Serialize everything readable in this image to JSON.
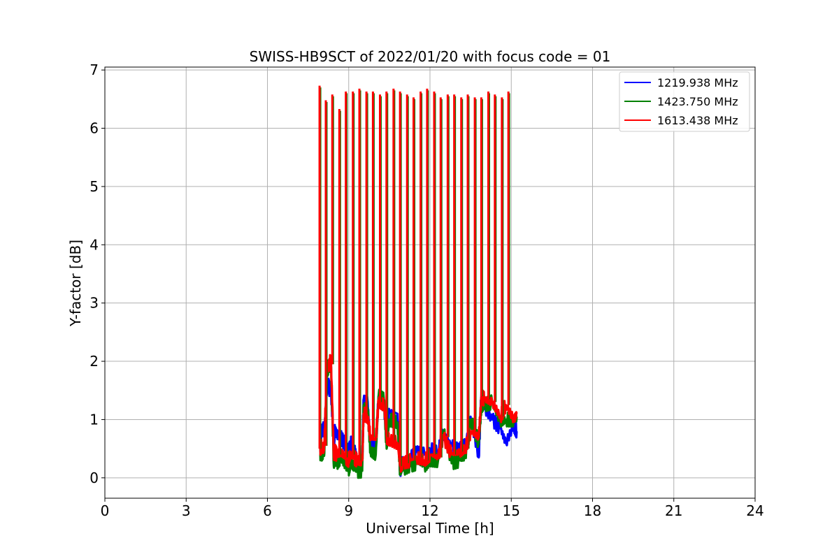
{
  "chart_data": {
    "type": "line",
    "title": "SWISS-HB9SCT of 2022/01/20 with focus code = 01",
    "xlabel": "Universal Time [h]",
    "ylabel": "Y-factor [dB]",
    "xlim": [
      0,
      24
    ],
    "ylim": [
      -0.35,
      7.05
    ],
    "xticks": [
      0,
      3,
      6,
      9,
      12,
      15,
      18,
      21,
      24
    ],
    "yticks": [
      0,
      1,
      2,
      3,
      4,
      5,
      6,
      7
    ],
    "xtick_labels": [
      "0",
      "3",
      "6",
      "9",
      "12",
      "15",
      "18",
      "21",
      "24"
    ],
    "ytick_labels": [
      "0",
      "1",
      "2",
      "3",
      "4",
      "5",
      "6",
      "7"
    ],
    "grid": true,
    "legend_position": "top-right",
    "series": [
      {
        "name": "1219.938 MHz",
        "color": "#0000ff",
        "x": [
          7.95,
          8.0,
          8.05,
          8.1,
          8.2,
          8.25,
          8.3,
          8.35,
          8.45,
          8.5,
          8.55,
          8.7,
          8.9,
          9.0,
          9.05,
          9.2,
          9.3,
          9.5,
          9.55,
          9.7,
          9.8,
          10.0,
          10.1,
          10.3,
          10.4,
          10.5,
          10.8,
          10.9,
          11.0,
          11.3,
          11.5,
          11.8,
          12.0,
          12.3,
          12.5,
          12.8,
          13.1,
          13.3,
          13.5,
          13.8,
          13.9,
          14.0,
          14.3,
          14.6,
          14.8,
          15.1,
          15.2
        ],
        "y": [
          0.45,
          0.8,
          0.85,
          0.82,
          1.55,
          1.6,
          1.5,
          1.45,
          0.6,
          0.85,
          0.75,
          0.7,
          0.55,
          0.5,
          0.6,
          0.55,
          0.3,
          0.3,
          1.35,
          1.3,
          0.6,
          0.5,
          1.4,
          1.3,
          0.6,
          1.15,
          1.1,
          0.1,
          0.3,
          0.35,
          0.45,
          0.4,
          0.5,
          0.45,
          0.8,
          0.55,
          0.5,
          0.55,
          1.05,
          0.35,
          1.5,
          1.2,
          1.0,
          0.85,
          0.6,
          0.9,
          0.8
        ]
      },
      {
        "name": "1423.750 MHz",
        "color": "#008000",
        "x": [
          7.95,
          8.0,
          8.05,
          8.1,
          8.2,
          8.25,
          8.3,
          8.35,
          8.45,
          8.5,
          8.55,
          8.7,
          8.9,
          9.0,
          9.05,
          9.2,
          9.3,
          9.5,
          9.55,
          9.7,
          9.8,
          10.0,
          10.1,
          10.3,
          10.4,
          10.5,
          10.8,
          10.9,
          11.0,
          11.3,
          11.5,
          11.8,
          12.0,
          12.3,
          12.5,
          12.8,
          13.1,
          13.3,
          13.5,
          13.8,
          13.9,
          14.0,
          14.3,
          14.6,
          14.8,
          15.1,
          15.2
        ],
        "y": [
          0.4,
          0.4,
          0.45,
          0.42,
          1.85,
          1.9,
          1.9,
          1.9,
          0.2,
          0.3,
          0.25,
          0.35,
          0.2,
          0.15,
          0.25,
          0.2,
          0.12,
          0.12,
          1.25,
          1.2,
          0.45,
          0.4,
          1.4,
          1.35,
          0.5,
          1.0,
          0.95,
          0.05,
          0.15,
          0.2,
          0.25,
          0.2,
          0.3,
          0.3,
          0.8,
          0.25,
          0.3,
          0.35,
          1.0,
          0.6,
          1.2,
          1.25,
          1.3,
          0.95,
          1.0,
          1.0,
          1.05
        ]
      },
      {
        "name": "1613.438 MHz",
        "color": "#ff0000",
        "x": [
          7.95,
          8.0,
          8.05,
          8.1,
          8.2,
          8.25,
          8.3,
          8.35,
          8.45,
          8.5,
          8.55,
          8.7,
          8.9,
          9.0,
          9.05,
          9.2,
          9.3,
          9.5,
          9.55,
          9.7,
          9.8,
          10.0,
          10.1,
          10.3,
          10.4,
          10.5,
          10.8,
          10.9,
          11.0,
          11.3,
          11.5,
          11.8,
          12.0,
          12.3,
          12.5,
          12.8,
          13.1,
          13.3,
          13.5,
          13.8,
          13.9,
          14.0,
          14.3,
          14.6,
          14.8,
          15.1,
          15.2
        ],
        "y": [
          0.5,
          0.55,
          0.5,
          0.55,
          1.95,
          1.9,
          2.0,
          1.95,
          0.35,
          0.45,
          0.4,
          0.45,
          0.35,
          0.3,
          0.4,
          0.35,
          0.3,
          0.3,
          1.1,
          1.05,
          0.7,
          0.65,
          1.3,
          1.25,
          0.7,
          0.65,
          0.6,
          0.2,
          0.25,
          0.3,
          0.35,
          0.3,
          0.4,
          0.35,
          0.7,
          0.4,
          0.45,
          0.5,
          0.8,
          0.7,
          1.4,
          1.35,
          1.3,
          1.05,
          1.25,
          1.0,
          1.1
        ]
      }
    ],
    "spikes": {
      "x": [
        7.95,
        8.18,
        8.42,
        8.68,
        8.92,
        9.18,
        9.42,
        9.68,
        9.92,
        10.18,
        10.42,
        10.68,
        10.92,
        11.18,
        11.42,
        11.68,
        11.92,
        12.18,
        12.42,
        12.68,
        12.92,
        13.18,
        13.42,
        13.68,
        13.92,
        14.18,
        14.42,
        14.68,
        14.92
      ],
      "y": [
        6.7,
        6.45,
        6.55,
        6.3,
        6.6,
        6.6,
        6.65,
        6.6,
        6.6,
        6.55,
        6.6,
        6.65,
        6.6,
        6.55,
        6.5,
        6.6,
        6.65,
        6.6,
        6.5,
        6.55,
        6.55,
        6.5,
        6.55,
        6.5,
        6.5,
        6.6,
        6.55,
        6.5,
        6.6
      ]
    },
    "marks": [
      {
        "label": "1219.938 MHz",
        "color": "#0000ff"
      },
      {
        "label": "1423.750 MHz",
        "color": "#008000"
      },
      {
        "label": "1613.438 MHz",
        "color": "#ff0000"
      }
    ]
  }
}
